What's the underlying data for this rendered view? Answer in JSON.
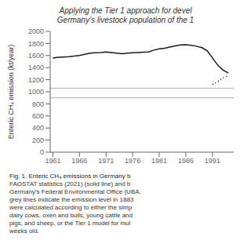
{
  "chart_data": {
    "type": "line",
    "title": "Applying the Tier 1 approach for devel",
    "subtitle": "Germany’s livestock population of the 1",
    "y_label": "Enteric CH₄ emission (kt/year)",
    "x": [
      1961,
      1962,
      1963,
      1964,
      1965,
      1966,
      1967,
      1968,
      1969,
      1970,
      1971,
      1972,
      1973,
      1974,
      1975,
      1976,
      1977,
      1978,
      1979,
      1980,
      1981,
      1982,
      1983,
      1984,
      1985,
      1986,
      1987,
      1988,
      1989,
      1990,
      1991,
      1992,
      1993,
      1994
    ],
    "series": [
      {
        "color": "#1a1a1a",
        "line_style": "solid",
        "values": [
          1560,
          1570,
          1575,
          1580,
          1590,
          1600,
          1620,
          1640,
          1645,
          1650,
          1660,
          1650,
          1640,
          1630,
          1640,
          1645,
          1650,
          1655,
          1660,
          1690,
          1710,
          1720,
          1740,
          1760,
          1775,
          1780,
          1770,
          1755,
          1730,
          1680,
          1560,
          1440,
          1360,
          1310
        ]
      },
      {
        "color": "#1a1a1a",
        "line_style": "dotted",
        "values": [
          null,
          null,
          null,
          null,
          null,
          null,
          null,
          null,
          null,
          null,
          null,
          null,
          null,
          null,
          null,
          null,
          null,
          null,
          null,
          null,
          null,
          null,
          null,
          null,
          null,
          null,
          null,
          null,
          null,
          null,
          1120,
          1170,
          1230,
          1270
        ]
      }
    ],
    "reference_lines": [
      {
        "y": 1060,
        "color": "#b0b0b0"
      },
      {
        "y": 900,
        "color": "#b0b0b0"
      }
    ],
    "xlim": [
      1960.5,
      1995
    ],
    "xticks": [
      1961,
      1966,
      1971,
      1976,
      1981,
      1986,
      1991
    ],
    "ylim": [
      0,
      2000
    ],
    "yticks": [
      0,
      200,
      400,
      600,
      800,
      1000,
      1200,
      1400,
      1600,
      1800,
      2000
    ],
    "grid": false,
    "annotations": [
      "Fig. 1. Enteric CH₄ emissions in Germany b",
      "FAOSTAT statistics (2021) (solid line) and b",
      "Germany’s Federal Environmental Office (UBA,",
      "grey lines indicate the emission level in 1883",
      "were calculated according to either the simp",
      "dairy cows, oxen and bulls, young cattle and",
      "pigs, and sheep, or the Tier 1 model for mul",
      "weeks old."
    ]
  }
}
